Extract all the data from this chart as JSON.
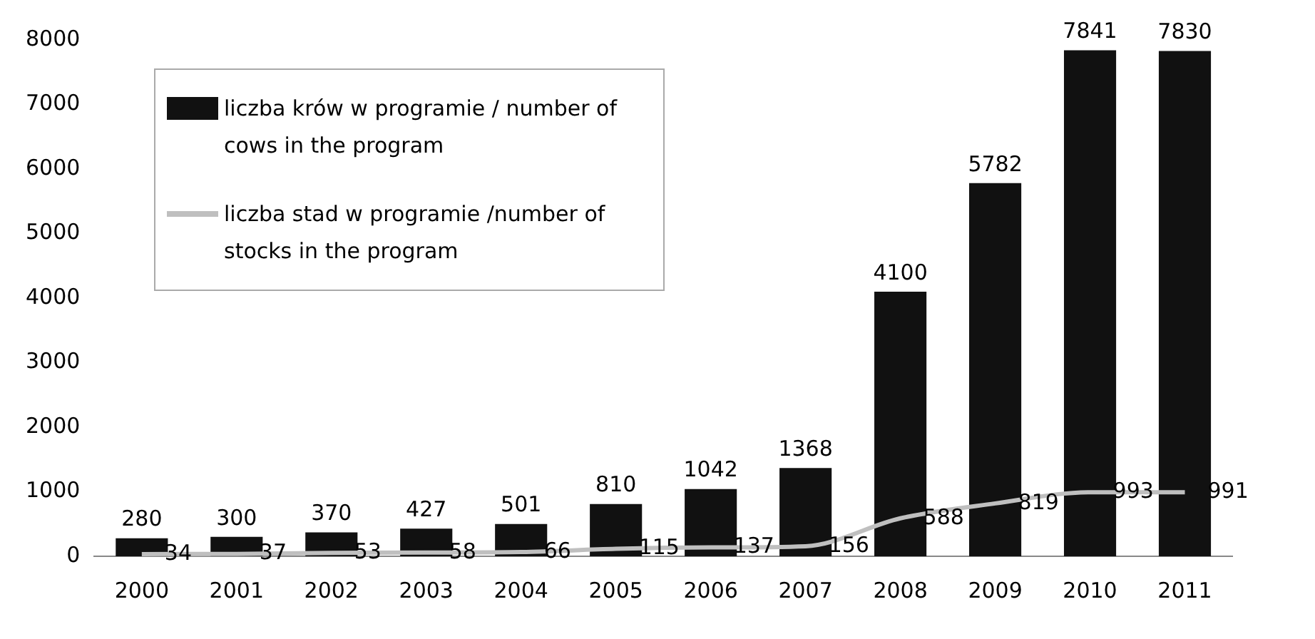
{
  "chart_data": {
    "type": "bar",
    "categories": [
      "2000",
      "2001",
      "2002",
      "2003",
      "2004",
      "2005",
      "2006",
      "2007",
      "2008",
      "2009",
      "2010",
      "2011"
    ],
    "series": [
      {
        "name": "liczba krów w programie / number of cows in the program",
        "color": "#111111",
        "values": [
          280,
          300,
          370,
          427,
          501,
          810,
          1042,
          1368,
          4100,
          5782,
          7841,
          7830
        ]
      },
      {
        "name": "liczba stad w programie /number of stocks in the program",
        "type": "line",
        "color": "#bfbfbf",
        "values": [
          34,
          37,
          53,
          58,
          66,
          115,
          137,
          156,
          588,
          819,
          993,
          991
        ]
      }
    ],
    "ylim": [
      0,
      8000
    ],
    "yticks": [
      0,
      1000,
      2000,
      3000,
      4000,
      5000,
      6000,
      7000,
      8000
    ],
    "grid": false,
    "legend": "top left",
    "marker": "none",
    "line_style": "solid",
    "data_labels": true
  }
}
